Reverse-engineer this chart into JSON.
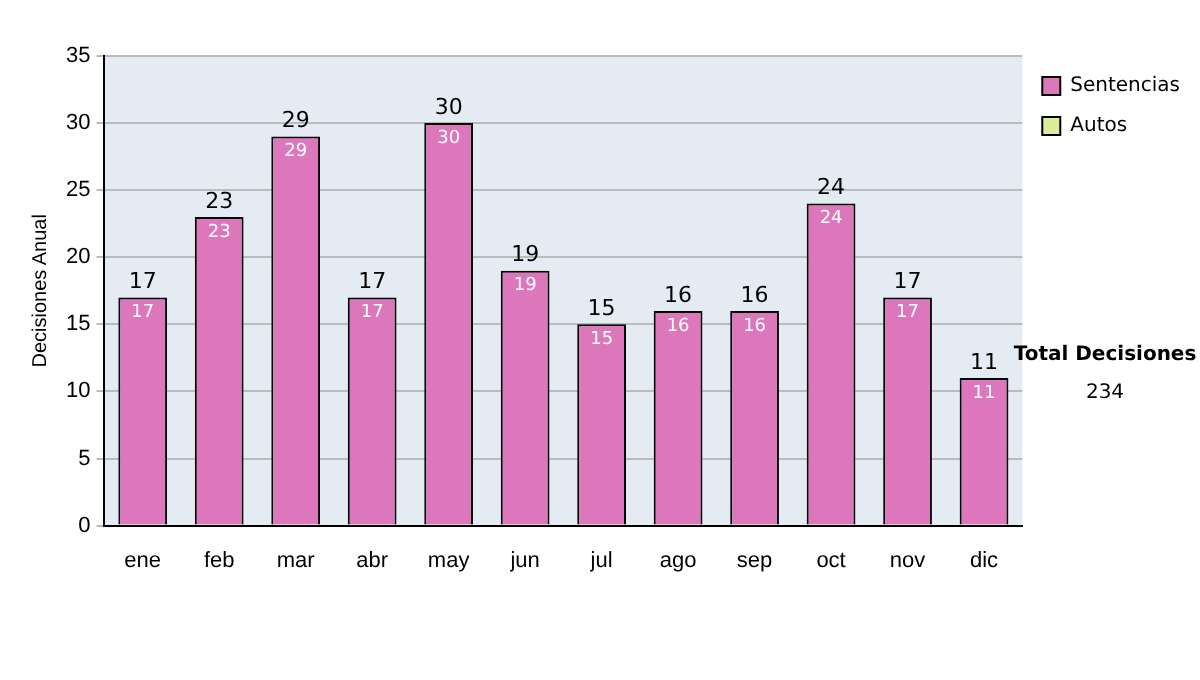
{
  "chart_data": {
    "type": "bar",
    "stacked": true,
    "ylabel": "Decisiones Anual",
    "categories": [
      "ene",
      "feb",
      "mar",
      "abr",
      "may",
      "jun",
      "jul",
      "ago",
      "sep",
      "oct",
      "nov",
      "dic"
    ],
    "series": [
      {
        "name": "Sentencias",
        "color": "#dd77bb",
        "values": [
          17,
          23,
          29,
          17,
          30,
          19,
          15,
          16,
          16,
          24,
          17,
          11
        ],
        "value_labels": [
          "17",
          "23",
          "29",
          "17",
          "30",
          "19",
          "15",
          "16",
          "16",
          "24",
          "17",
          "11"
        ]
      },
      {
        "name": "Autos",
        "color": "#ddee99",
        "values": [
          0,
          0,
          0,
          0,
          0,
          0,
          0,
          0,
          0,
          0,
          0,
          0
        ]
      }
    ],
    "totals": [
      "17",
      "23",
      "29",
      "17",
      "30",
      "19",
      "15",
      "16",
      "16",
      "24",
      "17",
      "11"
    ],
    "ylim": [
      0,
      35
    ],
    "yticks": [
      0,
      5,
      10,
      15,
      20,
      25,
      30,
      35
    ],
    "grid": "y",
    "legend": "right",
    "annotations": [
      "Total Decisiones",
      "234"
    ]
  }
}
